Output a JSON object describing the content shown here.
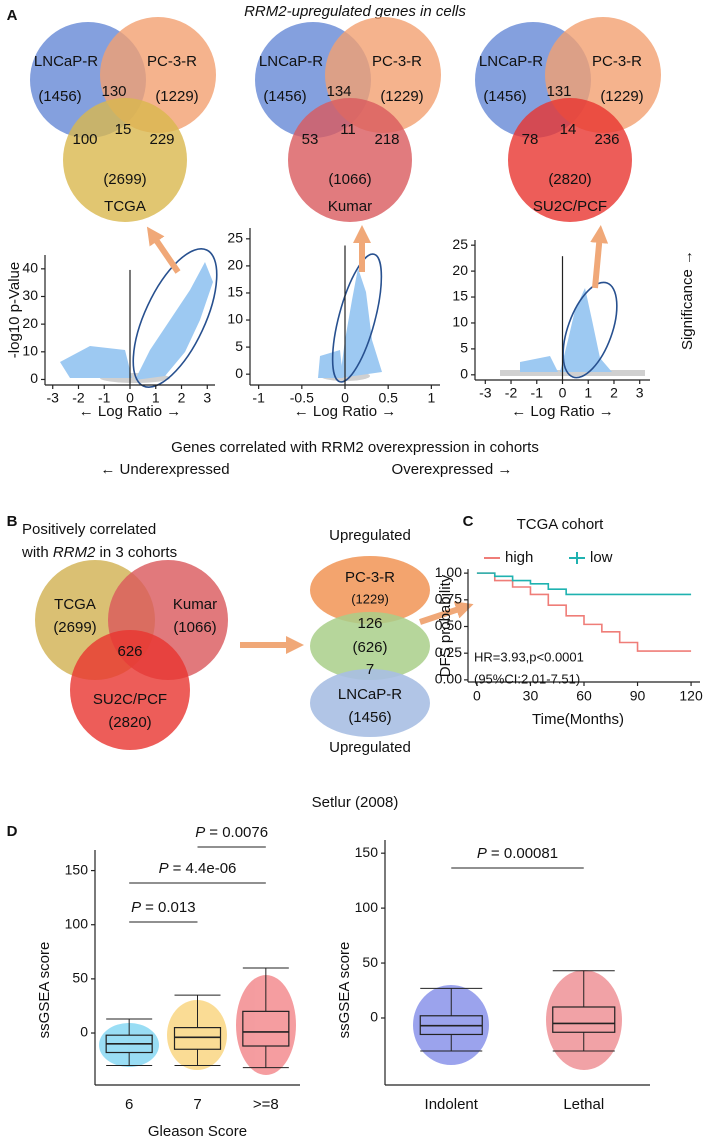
{
  "panel_a": {
    "label": "A",
    "title_gene": "RRM2",
    "title_rest": "-upregulated genes in cells",
    "venns": [
      {
        "sets": [
          "LNCaP-R",
          "PC-3-R",
          "TCGA"
        ],
        "counts": [
          "(1456)",
          "(1229)",
          "(2699)"
        ],
        "ab": 130,
        "ac": 100,
        "abc": 15,
        "bc": 229
      },
      {
        "sets": [
          "LNCaP-R",
          "PC-3-R",
          "Kumar"
        ],
        "counts": [
          "(1456)",
          "(1229)",
          "(1066)"
        ],
        "ab": 134,
        "ac": 53,
        "abc": 11,
        "bc": 218
      },
      {
        "sets": [
          "LNCaP-R",
          "PC-3-R",
          "SU2C/PCF"
        ],
        "counts": [
          "(1456)",
          "(1229)",
          "(2820)"
        ],
        "ab": 131,
        "ac": 78,
        "abc": 14,
        "bc": 236
      }
    ],
    "volcanos": [
      {
        "xlim": [
          -3.3,
          3.3
        ],
        "xticks": [
          -3,
          -2,
          -1,
          0,
          1,
          2,
          3
        ],
        "ylim": [
          -2,
          45
        ],
        "yticks": [
          0,
          10,
          20,
          30,
          40
        ]
      },
      {
        "xlim": [
          -1.1,
          1.1
        ],
        "xticks": [
          -1,
          -0.5,
          0,
          0.5,
          1
        ],
        "ylim": [
          -2,
          27
        ],
        "yticks": [
          0,
          5,
          10,
          15,
          20,
          25
        ]
      },
      {
        "xlim": [
          -3.4,
          3.4
        ],
        "xticks": [
          -3,
          -2,
          -1,
          0,
          1,
          2,
          3
        ],
        "ylim": [
          -1,
          26
        ],
        "yticks": [
          0,
          5,
          10,
          15,
          20,
          25
        ]
      }
    ],
    "y_label": "-log10 p-Value",
    "x_label": "← Log Ratio →",
    "side_label": "Significance →",
    "caption": "Genes correlated with RRM2 overexpression in cohorts",
    "under": "← Underexpressed",
    "over": "Overexpressed →"
  },
  "panel_b": {
    "label": "B",
    "heading_1": "Positively correlated",
    "heading_2_pre": "with ",
    "heading_2_gene": "RRM2",
    "heading_2_post": " in 3 cohorts",
    "sets": [
      "TCGA",
      "Kumar",
      "SU2C/PCF"
    ],
    "counts": [
      "(2699)",
      "(1066)",
      "(2820)"
    ],
    "core": 626,
    "stack": {
      "top_label": "Upregulated",
      "upper": "PC-3-R",
      "upper_count": "(1229)",
      "upper_overlap": 126,
      "middle_count": "(626)",
      "lower_overlap": 7,
      "lower": "LNCaP-R",
      "lower_count": "(1456)",
      "bottom_label": "Upregulated"
    }
  },
  "panel_c": {
    "label": "C"
  },
  "panel_d": {
    "label": "D",
    "title": "Setlur (2008)",
    "p_symbol": "P"
  },
  "chart_data": [
    {
      "type": "line",
      "title": "TCGA cohort",
      "x_label": "Time(Months)",
      "y_label": "DFS probability",
      "xlim": [
        -5,
        125
      ],
      "xticks": [
        0,
        30,
        60,
        90,
        120
      ],
      "ylim": [
        -0.02,
        1.02
      ],
      "yticks": [
        {
          "value": 0,
          "label": "0.00"
        },
        {
          "value": 0.25,
          "label": "0.25"
        },
        {
          "value": 0.5,
          "label": "0.50"
        },
        {
          "value": 0.75,
          "label": "0.75"
        },
        {
          "value": 1,
          "label": "1.00"
        }
      ],
      "legend": "top",
      "series": [
        {
          "name": "high",
          "color": "#ef7d78",
          "x": [
            0,
            10,
            20,
            30,
            40,
            50,
            60,
            70,
            80,
            90,
            120
          ],
          "values": [
            1,
            0.93,
            0.87,
            0.8,
            0.7,
            0.6,
            0.52,
            0.45,
            0.35,
            0.27,
            0.27
          ]
        },
        {
          "name": "low",
          "color": "#1fb2b0",
          "x": [
            0,
            10,
            20,
            30,
            40,
            50,
            120
          ],
          "values": [
            1,
            0.97,
            0.93,
            0.9,
            0.85,
            0.8,
            0.8
          ]
        }
      ],
      "annotations": [
        "HR=3.93,p<0.0001",
        "(95%CI:2.01-7.51)"
      ]
    },
    {
      "type": "box",
      "x_label": "Gleason Score",
      "y_label": "ssGSEA score",
      "categories": [
        "6",
        "7",
        ">=8"
      ],
      "colors": [
        "#1fb5e8",
        "#f5b316",
        "#e8262d"
      ],
      "ylim": [
        -48,
        169
      ],
      "yticks": [
        0,
        50,
        100,
        150
      ],
      "boxes": [
        {
          "whislo": -30,
          "q1": -18,
          "med": -10,
          "q3": -2,
          "whishi": 13
        },
        {
          "whislo": -30,
          "q1": -15,
          "med": -4,
          "q3": 5,
          "whishi": 35
        },
        {
          "whislo": -32,
          "q1": -12,
          "med": 1,
          "q3": 20,
          "whishi": 60
        }
      ],
      "comparisons": [
        {
          "pair": [
            0,
            1
          ],
          "label": "= 0.013"
        },
        {
          "pair": [
            0,
            2
          ],
          "label": "= 4.4e-06"
        },
        {
          "pair": [
            1,
            2
          ],
          "label": "= 0.0076"
        }
      ]
    },
    {
      "type": "box",
      "y_label": "ssGSEA score",
      "categories": [
        "Indolent",
        "Lethal"
      ],
      "colors": [
        "#2233d6",
        "#e0303a"
      ],
      "ylim": [
        -61,
        162
      ],
      "yticks": [
        0,
        50,
        100,
        150
      ],
      "boxes": [
        {
          "whislo": -30,
          "q1": -15,
          "med": -7,
          "q3": 2,
          "whishi": 27
        },
        {
          "whislo": -30,
          "q1": -13,
          "med": -5,
          "q3": 10,
          "whishi": 43
        }
      ],
      "comparisons": [
        {
          "pair": [
            0,
            1
          ],
          "label": "= 0.00081"
        }
      ]
    }
  ]
}
